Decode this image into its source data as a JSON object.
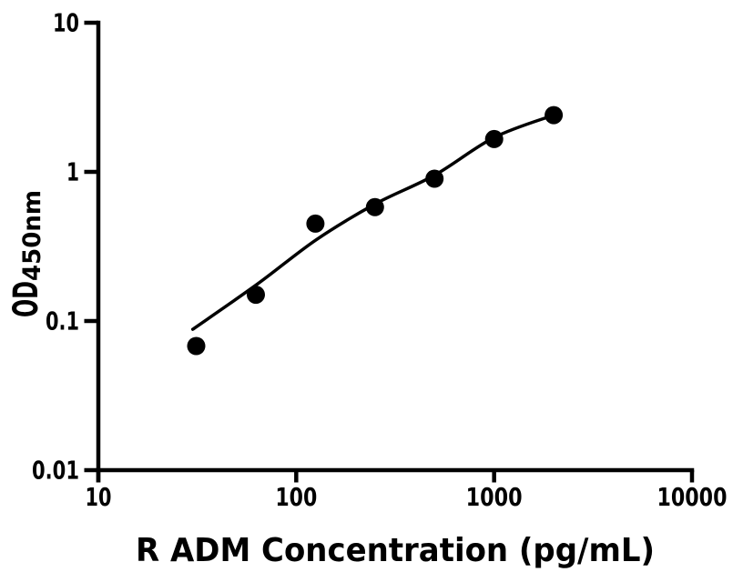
{
  "figure": {
    "background_color": "#ffffff",
    "ink_color": "#000000"
  },
  "chart_data": {
    "type": "scatter",
    "title": "",
    "xlabel": "R ADM Concentration (pg/mL)",
    "ylabel_main": "OD",
    "ylabel_subscript": "450nm",
    "x_scale": "log",
    "y_scale": "log",
    "xlim": [
      10,
      10000
    ],
    "ylim": [
      0.01,
      10
    ],
    "x_ticks": [
      10,
      100,
      1000,
      10000
    ],
    "x_tick_labels": [
      "10",
      "100",
      "1000",
      "10000"
    ],
    "y_ticks": [
      10,
      1,
      0.1,
      0.01
    ],
    "y_tick_labels": [
      "10",
      "1",
      "0.1",
      "0.01"
    ],
    "grid": false,
    "legend": null,
    "axes_style": "L-frame, thick black axes, ticks pointing outward",
    "series": [
      {
        "name": "standard-data-points",
        "type": "scatter",
        "marker": "filled-circle",
        "color": "#000000",
        "points": [
          {
            "x": 31.25,
            "y": 0.068
          },
          {
            "x": 62.5,
            "y": 0.15
          },
          {
            "x": 125,
            "y": 0.45
          },
          {
            "x": 250,
            "y": 0.58
          },
          {
            "x": 500,
            "y": 0.9
          },
          {
            "x": 1000,
            "y": 1.66
          },
          {
            "x": 2000,
            "y": 2.4
          }
        ]
      },
      {
        "name": "fit-curve",
        "type": "line",
        "color": "#000000",
        "points": [
          {
            "x": 30,
            "y": 0.088
          },
          {
            "x": 63,
            "y": 0.175
          },
          {
            "x": 126,
            "y": 0.35
          },
          {
            "x": 251,
            "y": 0.61
          },
          {
            "x": 500,
            "y": 0.95
          },
          {
            "x": 1000,
            "y": 1.7
          },
          {
            "x": 2000,
            "y": 2.4
          }
        ]
      }
    ]
  }
}
